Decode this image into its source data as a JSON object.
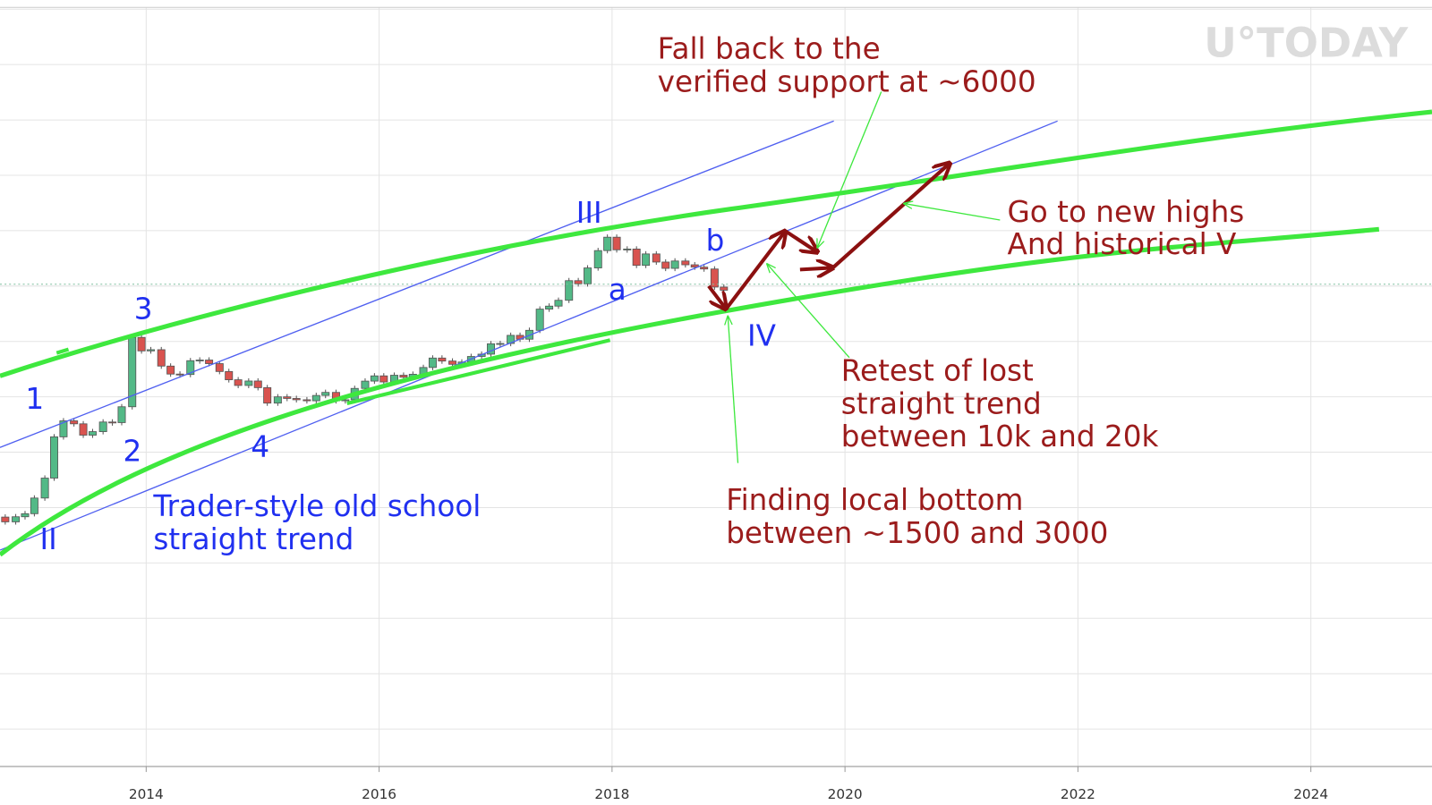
{
  "chart_data": {
    "type": "candlestick",
    "log_scale": true,
    "grid": true,
    "up_color": "#53b987",
    "down_color": "#d9534f",
    "xlim": [
      2012.745,
      2025.04
    ],
    "xticks": [
      2014,
      2016,
      2018,
      2020,
      2022,
      2024
    ],
    "ylim": [
      0.0236,
      4500000
    ],
    "x": [
      2012.79,
      2012.88,
      2012.96,
      2013.04,
      2013.13,
      2013.21,
      2013.29,
      2013.38,
      2013.46,
      2013.54,
      2013.63,
      2013.71,
      2013.79,
      2013.88,
      2013.96,
      2014.04,
      2014.13,
      2014.21,
      2014.29,
      2014.38,
      2014.46,
      2014.54,
      2014.63,
      2014.71,
      2014.79,
      2014.88,
      2014.96,
      2015.04,
      2015.13,
      2015.21,
      2015.29,
      2015.38,
      2015.46,
      2015.54,
      2015.63,
      2015.71,
      2015.79,
      2015.88,
      2015.96,
      2016.04,
      2016.13,
      2016.21,
      2016.29,
      2016.38,
      2016.46,
      2016.54,
      2016.63,
      2016.71,
      2016.79,
      2016.88,
      2016.96,
      2017.04,
      2017.13,
      2017.21,
      2017.29,
      2017.38,
      2017.46,
      2017.54,
      2017.63,
      2017.71,
      2017.79,
      2017.88,
      2017.96,
      2018.04,
      2018.13,
      2018.21,
      2018.29,
      2018.38,
      2018.46,
      2018.54,
      2018.63,
      2018.71,
      2018.79,
      2018.88,
      2018.96
    ],
    "open": [
      12.4,
      11,
      12.5,
      13.5,
      20,
      33,
      93,
      139,
      129,
      97,
      106,
      135,
      133,
      198,
      1130,
      805,
      830,
      550,
      450,
      445,
      630,
      640,
      585,
      480,
      390,
      338,
      378,
      320,
      217,
      254,
      244,
      236,
      230,
      263,
      284,
      230,
      236,
      314,
      377,
      430,
      369,
      437,
      416,
      448,
      531,
      673,
      624,
      575,
      609,
      700,
      742,
      963,
      970,
      1190,
      1080,
      1350,
      2300,
      2480,
      2870,
      4700,
      4340,
      6470,
      10000,
      14000,
      10200,
      10400,
      6900,
      9200,
      7500,
      6400,
      7700,
      7000,
      6600,
      6300,
      4000
    ],
    "close": [
      11,
      12.5,
      13.5,
      20,
      33,
      93,
      139,
      129,
      97,
      106,
      135,
      133,
      198,
      1130,
      805,
      830,
      550,
      450,
      445,
      630,
      640,
      585,
      480,
      390,
      338,
      378,
      320,
      217,
      254,
      244,
      236,
      230,
      263,
      284,
      230,
      236,
      314,
      377,
      430,
      369,
      437,
      416,
      448,
      531,
      673,
      624,
      575,
      609,
      700,
      742,
      963,
      970,
      1190,
      1080,
      1350,
      2300,
      2480,
      2870,
      4700,
      4340,
      6470,
      10000,
      14000,
      10200,
      10400,
      6900,
      9200,
      7500,
      6400,
      7700,
      7000,
      6600,
      6300,
      4000,
      3700
    ],
    "watermark": "U°TODAY",
    "annotations": [
      {
        "lines": [
          "Fall back to the",
          "verified support at ~6000"
        ]
      },
      {
        "lines": [
          "Go to new highs",
          "And historical V"
        ]
      },
      {
        "lines": [
          "Retest of lost",
          "straight trend",
          "between 10k and 20k"
        ]
      },
      {
        "lines": [
          "Finding local bottom",
          "between ~1500 and 3000"
        ]
      },
      {
        "lines": [
          "Trader-style old school",
          "straight trend"
        ]
      }
    ],
    "wave_labels": [
      "1",
      "2",
      "3",
      "4",
      "II",
      "III",
      "IV",
      "a",
      "b"
    ]
  }
}
